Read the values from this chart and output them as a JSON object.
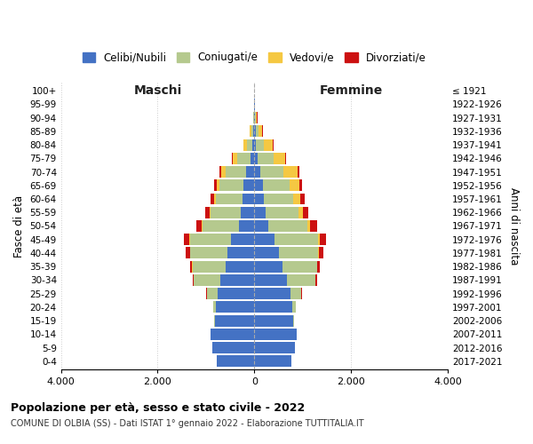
{
  "age_groups": [
    "0-4",
    "5-9",
    "10-14",
    "15-19",
    "20-24",
    "25-29",
    "30-34",
    "35-39",
    "40-44",
    "45-49",
    "50-54",
    "55-59",
    "60-64",
    "65-69",
    "70-74",
    "75-79",
    "80-84",
    "85-89",
    "90-94",
    "95-99",
    "100+"
  ],
  "birth_years": [
    "2017-2021",
    "2012-2016",
    "2007-2011",
    "2002-2006",
    "1997-2001",
    "1992-1996",
    "1987-1991",
    "1982-1986",
    "1977-1981",
    "1972-1976",
    "1967-1971",
    "1962-1966",
    "1957-1961",
    "1952-1956",
    "1947-1951",
    "1942-1946",
    "1937-1941",
    "1932-1936",
    "1927-1931",
    "1922-1926",
    "≤ 1921"
  ],
  "colors": {
    "celibi": "#4472c4",
    "coniugati": "#b5c98e",
    "vedovi": "#f5c842",
    "divorziati": "#cc1111"
  },
  "males": {
    "celibi": [
      780,
      870,
      900,
      820,
      790,
      760,
      700,
      600,
      550,
      480,
      320,
      280,
      250,
      220,
      170,
      80,
      40,
      20,
      10,
      4,
      2
    ],
    "coniugati": [
      0,
      0,
      5,
      20,
      60,
      220,
      550,
      680,
      780,
      850,
      750,
      620,
      540,
      500,
      420,
      280,
      120,
      40,
      8,
      2,
      0
    ],
    "vedovi": [
      0,
      0,
      0,
      0,
      0,
      1,
      2,
      3,
      5,
      10,
      15,
      20,
      40,
      60,
      90,
      80,
      60,
      30,
      10,
      2,
      0
    ],
    "divorziati": [
      0,
      0,
      0,
      1,
      3,
      10,
      30,
      50,
      80,
      110,
      120,
      100,
      80,
      60,
      40,
      20,
      10,
      5,
      2,
      0,
      0
    ]
  },
  "females": {
    "nubili": [
      760,
      840,
      870,
      800,
      790,
      740,
      680,
      580,
      500,
      420,
      280,
      240,
      200,
      170,
      130,
      70,
      40,
      22,
      12,
      5,
      2
    ],
    "coniugate": [
      0,
      0,
      5,
      25,
      70,
      230,
      580,
      720,
      820,
      900,
      820,
      680,
      600,
      560,
      480,
      320,
      160,
      60,
      15,
      3,
      0
    ],
    "vedove": [
      0,
      0,
      0,
      0,
      1,
      2,
      4,
      8,
      15,
      30,
      50,
      80,
      150,
      200,
      280,
      250,
      180,
      80,
      30,
      5,
      0
    ],
    "divorziate": [
      0,
      0,
      0,
      1,
      4,
      12,
      35,
      55,
      90,
      130,
      150,
      120,
      90,
      60,
      40,
      20,
      12,
      8,
      3,
      0,
      0
    ]
  },
  "xlim": 4000,
  "xticks": [
    -4000,
    -2000,
    0,
    2000,
    4000
  ],
  "xticklabels": [
    "4.000",
    "2.000",
    "0",
    "2.000",
    "4.000"
  ],
  "title1": "Popolazione per età, sesso e stato civile - 2022",
  "title2": "COMUNE DI OLBIA (SS) - Dati ISTAT 1° gennaio 2022 - Elaborazione TUTTITALIA.IT",
  "legend_labels": [
    "Celibi/Nubili",
    "Coniugati/e",
    "Vedovi/e",
    "Divorziati/e"
  ],
  "ylabel_left": "Fasce di età",
  "ylabel_right": "Anni di nascita",
  "label_maschi": "Maschi",
  "label_femmine": "Femmine"
}
